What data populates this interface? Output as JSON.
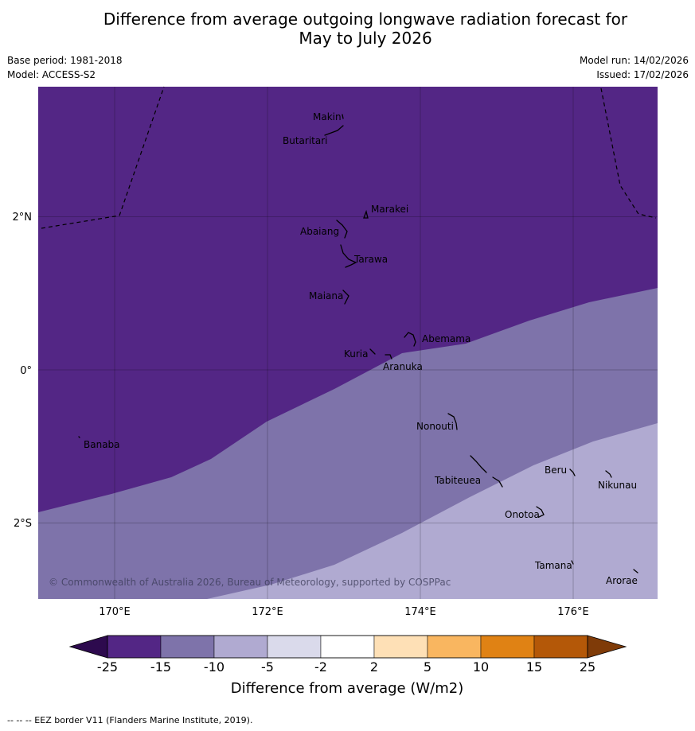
{
  "title": {
    "line1": "Difference from average outgoing longwave radiation forecast for",
    "line2": "May to July 2026"
  },
  "meta": {
    "base_period": "Base period: 1981-2018",
    "model": "Model: ACCESS-S2",
    "model_run": "Model run: 14/02/2026",
    "issued": "Issued: 17/02/2026"
  },
  "map": {
    "lat_labels": [
      "2°N",
      "0°",
      "2°S"
    ],
    "lon_labels": [
      "170°E",
      "172°E",
      "174°E",
      "176°E"
    ],
    "places": [
      "Makin",
      "Butaritari",
      "Marakei",
      "Abaiang",
      "Tarawa",
      "Maiana",
      "Abemama",
      "Kuria",
      "Aranuka",
      "Nonouti",
      "Banaba",
      "Tabiteuea",
      "Beru",
      "Nikunau",
      "Onotoa",
      "Tamana",
      "Arorae"
    ],
    "copyright": "© Commonwealth of Australia 2026, Bureau of Meteorology, supported by COSPPac",
    "colors": {
      "class_-25_-15": "#532685",
      "class_-15_-10": "#7e73aa",
      "class_-10_-5": "#b0aad1"
    }
  },
  "colorbar": {
    "ticks": [
      "-25",
      "-15",
      "-10",
      "-5",
      "-2",
      "2",
      "5",
      "10",
      "15",
      "25"
    ],
    "colors": [
      "#532685",
      "#7e73aa",
      "#b0aad1",
      "#dadaeb",
      "#ffffff",
      "#fee0b6",
      "#f9b660",
      "#e08214",
      "#b45808"
    ],
    "under_color": "#2d0a4e",
    "over_color": "#7f3b08",
    "label": "Difference from average (W/m2)"
  },
  "footer": "--  --  -- EEZ border V11 (Flanders Marine Institute, 2019)."
}
